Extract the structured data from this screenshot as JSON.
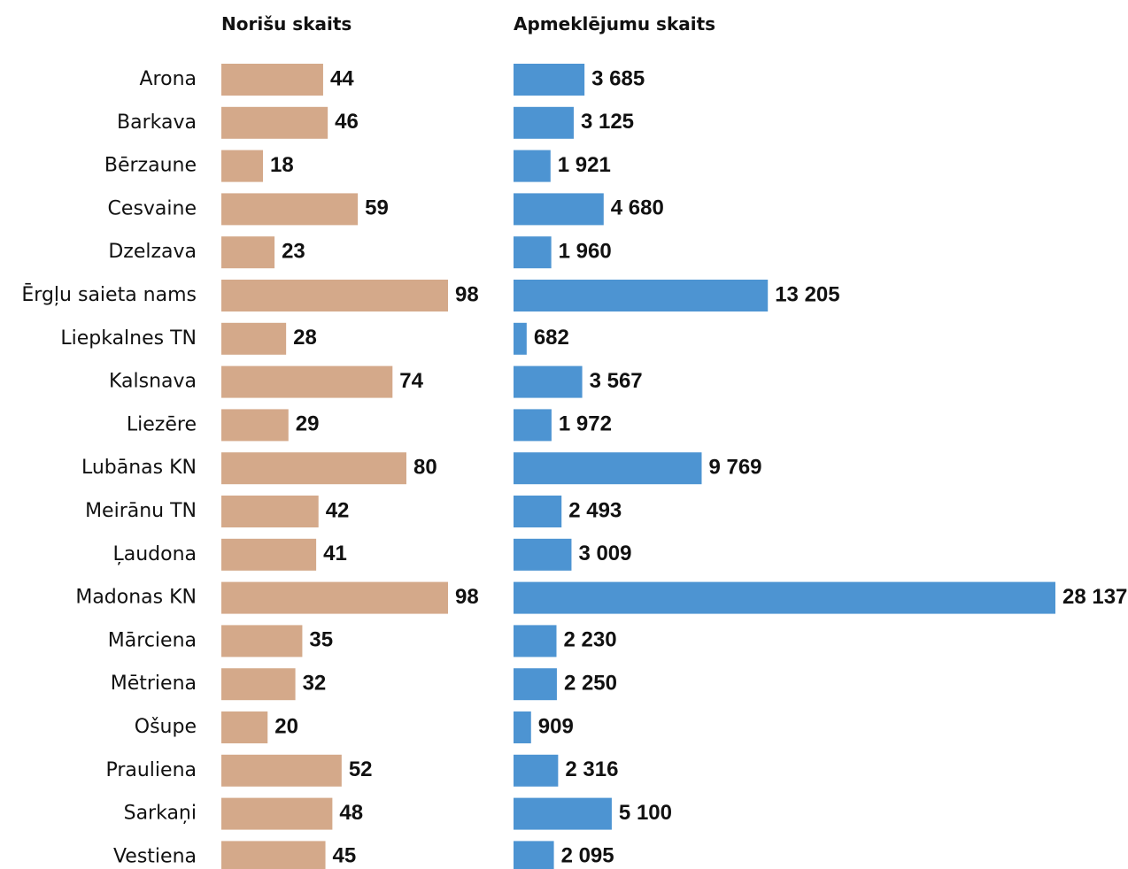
{
  "colors": {
    "events_bar": "#d4a98a",
    "visits_bar": "#4d94d2",
    "text": "#111111"
  },
  "chart_data": {
    "type": "bar",
    "orientation": "horizontal",
    "categories": [
      "Arona",
      "Barkava",
      "Bērzaune",
      "Cesvaine",
      "Dzelzava",
      "Ērgļu saieta nams",
      "Liepkalnes TN",
      "Kalsnava",
      "Liezēre",
      "Lubānas KN",
      "Meirānu TN",
      "Ļaudona",
      "Madonas KN",
      "Mārciena",
      "Mētriena",
      "Ošupe",
      "Prauliena",
      "Sarkaņi",
      "Vestiena"
    ],
    "series": [
      {
        "name": "Norišu skaits",
        "values": [
          44,
          46,
          18,
          59,
          23,
          98,
          28,
          74,
          29,
          80,
          42,
          41,
          98,
          35,
          32,
          20,
          52,
          48,
          45
        ],
        "labels": [
          "44",
          "46",
          "18",
          "59",
          "23",
          "98",
          "28",
          "74",
          "29",
          "80",
          "42",
          "41",
          "98",
          "35",
          "32",
          "20",
          "52",
          "48",
          "45"
        ]
      },
      {
        "name": "Apmeklējumu skaits",
        "values": [
          3685,
          3125,
          1921,
          4680,
          1960,
          13205,
          682,
          3567,
          1972,
          9769,
          2493,
          3009,
          28137,
          2230,
          2250,
          909,
          2316,
          5100,
          2095
        ],
        "labels": [
          "3 685",
          "3 125",
          "1 921",
          "4 680",
          "1 960",
          "13 205",
          "682",
          "3 567",
          "1 972",
          "9 769",
          "2 493",
          "3 009",
          "28 137",
          "2 230",
          "2 250",
          "909",
          "2 316",
          "5 100",
          "2 095"
        ]
      }
    ],
    "legend": "none",
    "grid": false
  }
}
